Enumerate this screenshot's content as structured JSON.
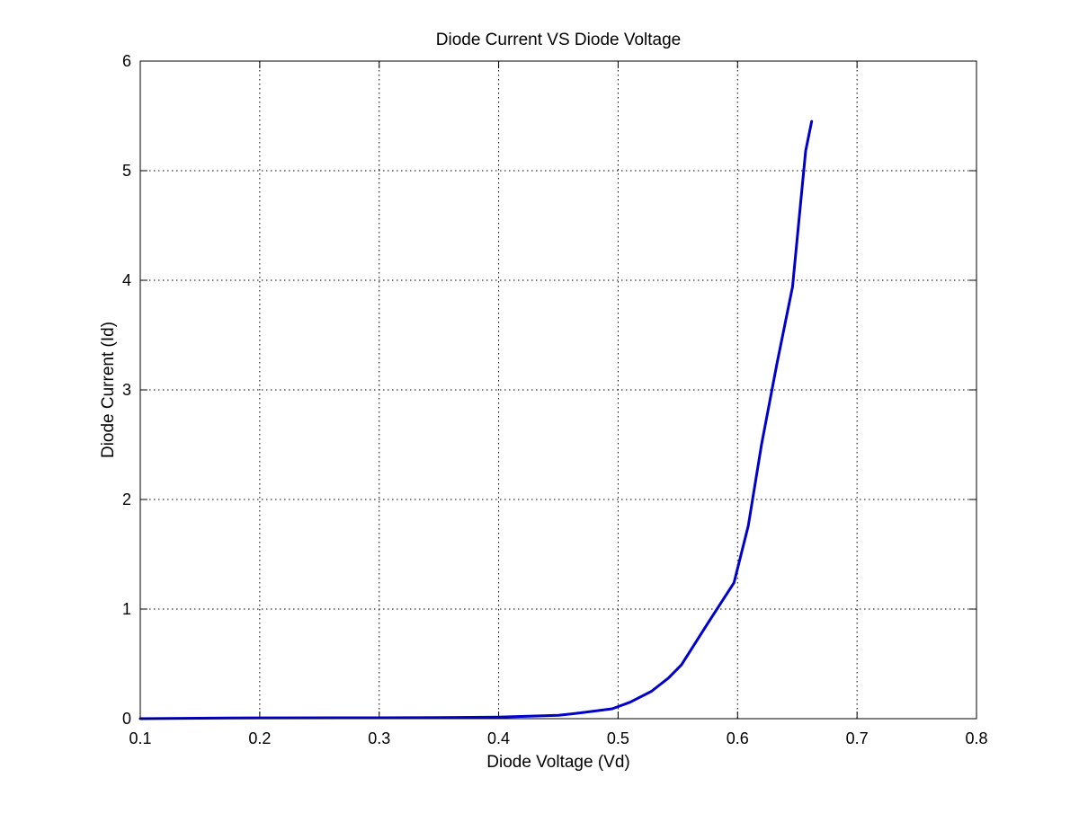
{
  "chart_data": {
    "type": "line",
    "title": "Diode Current VS Diode Voltage",
    "xlabel": "Diode Voltage (Vd)",
    "ylabel": "Diode Current (Id)",
    "xlim": [
      0.1,
      0.8
    ],
    "ylim": [
      0,
      6
    ],
    "xticks": [
      0.1,
      0.2,
      0.3,
      0.4,
      0.5,
      0.6,
      0.7,
      0.8
    ],
    "xtick_labels": [
      "0.1",
      "0.2",
      "0.3",
      "0.4",
      "0.5",
      "0.6",
      "0.7",
      "0.8"
    ],
    "yticks": [
      0,
      1,
      2,
      3,
      4,
      5,
      6
    ],
    "ytick_labels": [
      "0",
      "1",
      "2",
      "3",
      "4",
      "5",
      "6"
    ],
    "grid": true,
    "legend": "none",
    "series": [
      {
        "color": "#0000cc",
        "x": [
          0.1,
          0.16,
          0.2,
          0.3,
          0.35,
          0.4,
          0.45,
          0.47,
          0.495,
          0.51,
          0.528,
          0.542,
          0.553,
          0.575,
          0.597,
          0.609,
          0.62,
          0.633,
          0.646,
          0.657,
          0.662
        ],
        "y": [
          0.0,
          0.005,
          0.007,
          0.008,
          0.01,
          0.015,
          0.03,
          0.055,
          0.09,
          0.15,
          0.25,
          0.37,
          0.49,
          0.87,
          1.24,
          1.76,
          2.5,
          3.24,
          3.94,
          5.18,
          5.45
        ]
      }
    ]
  }
}
